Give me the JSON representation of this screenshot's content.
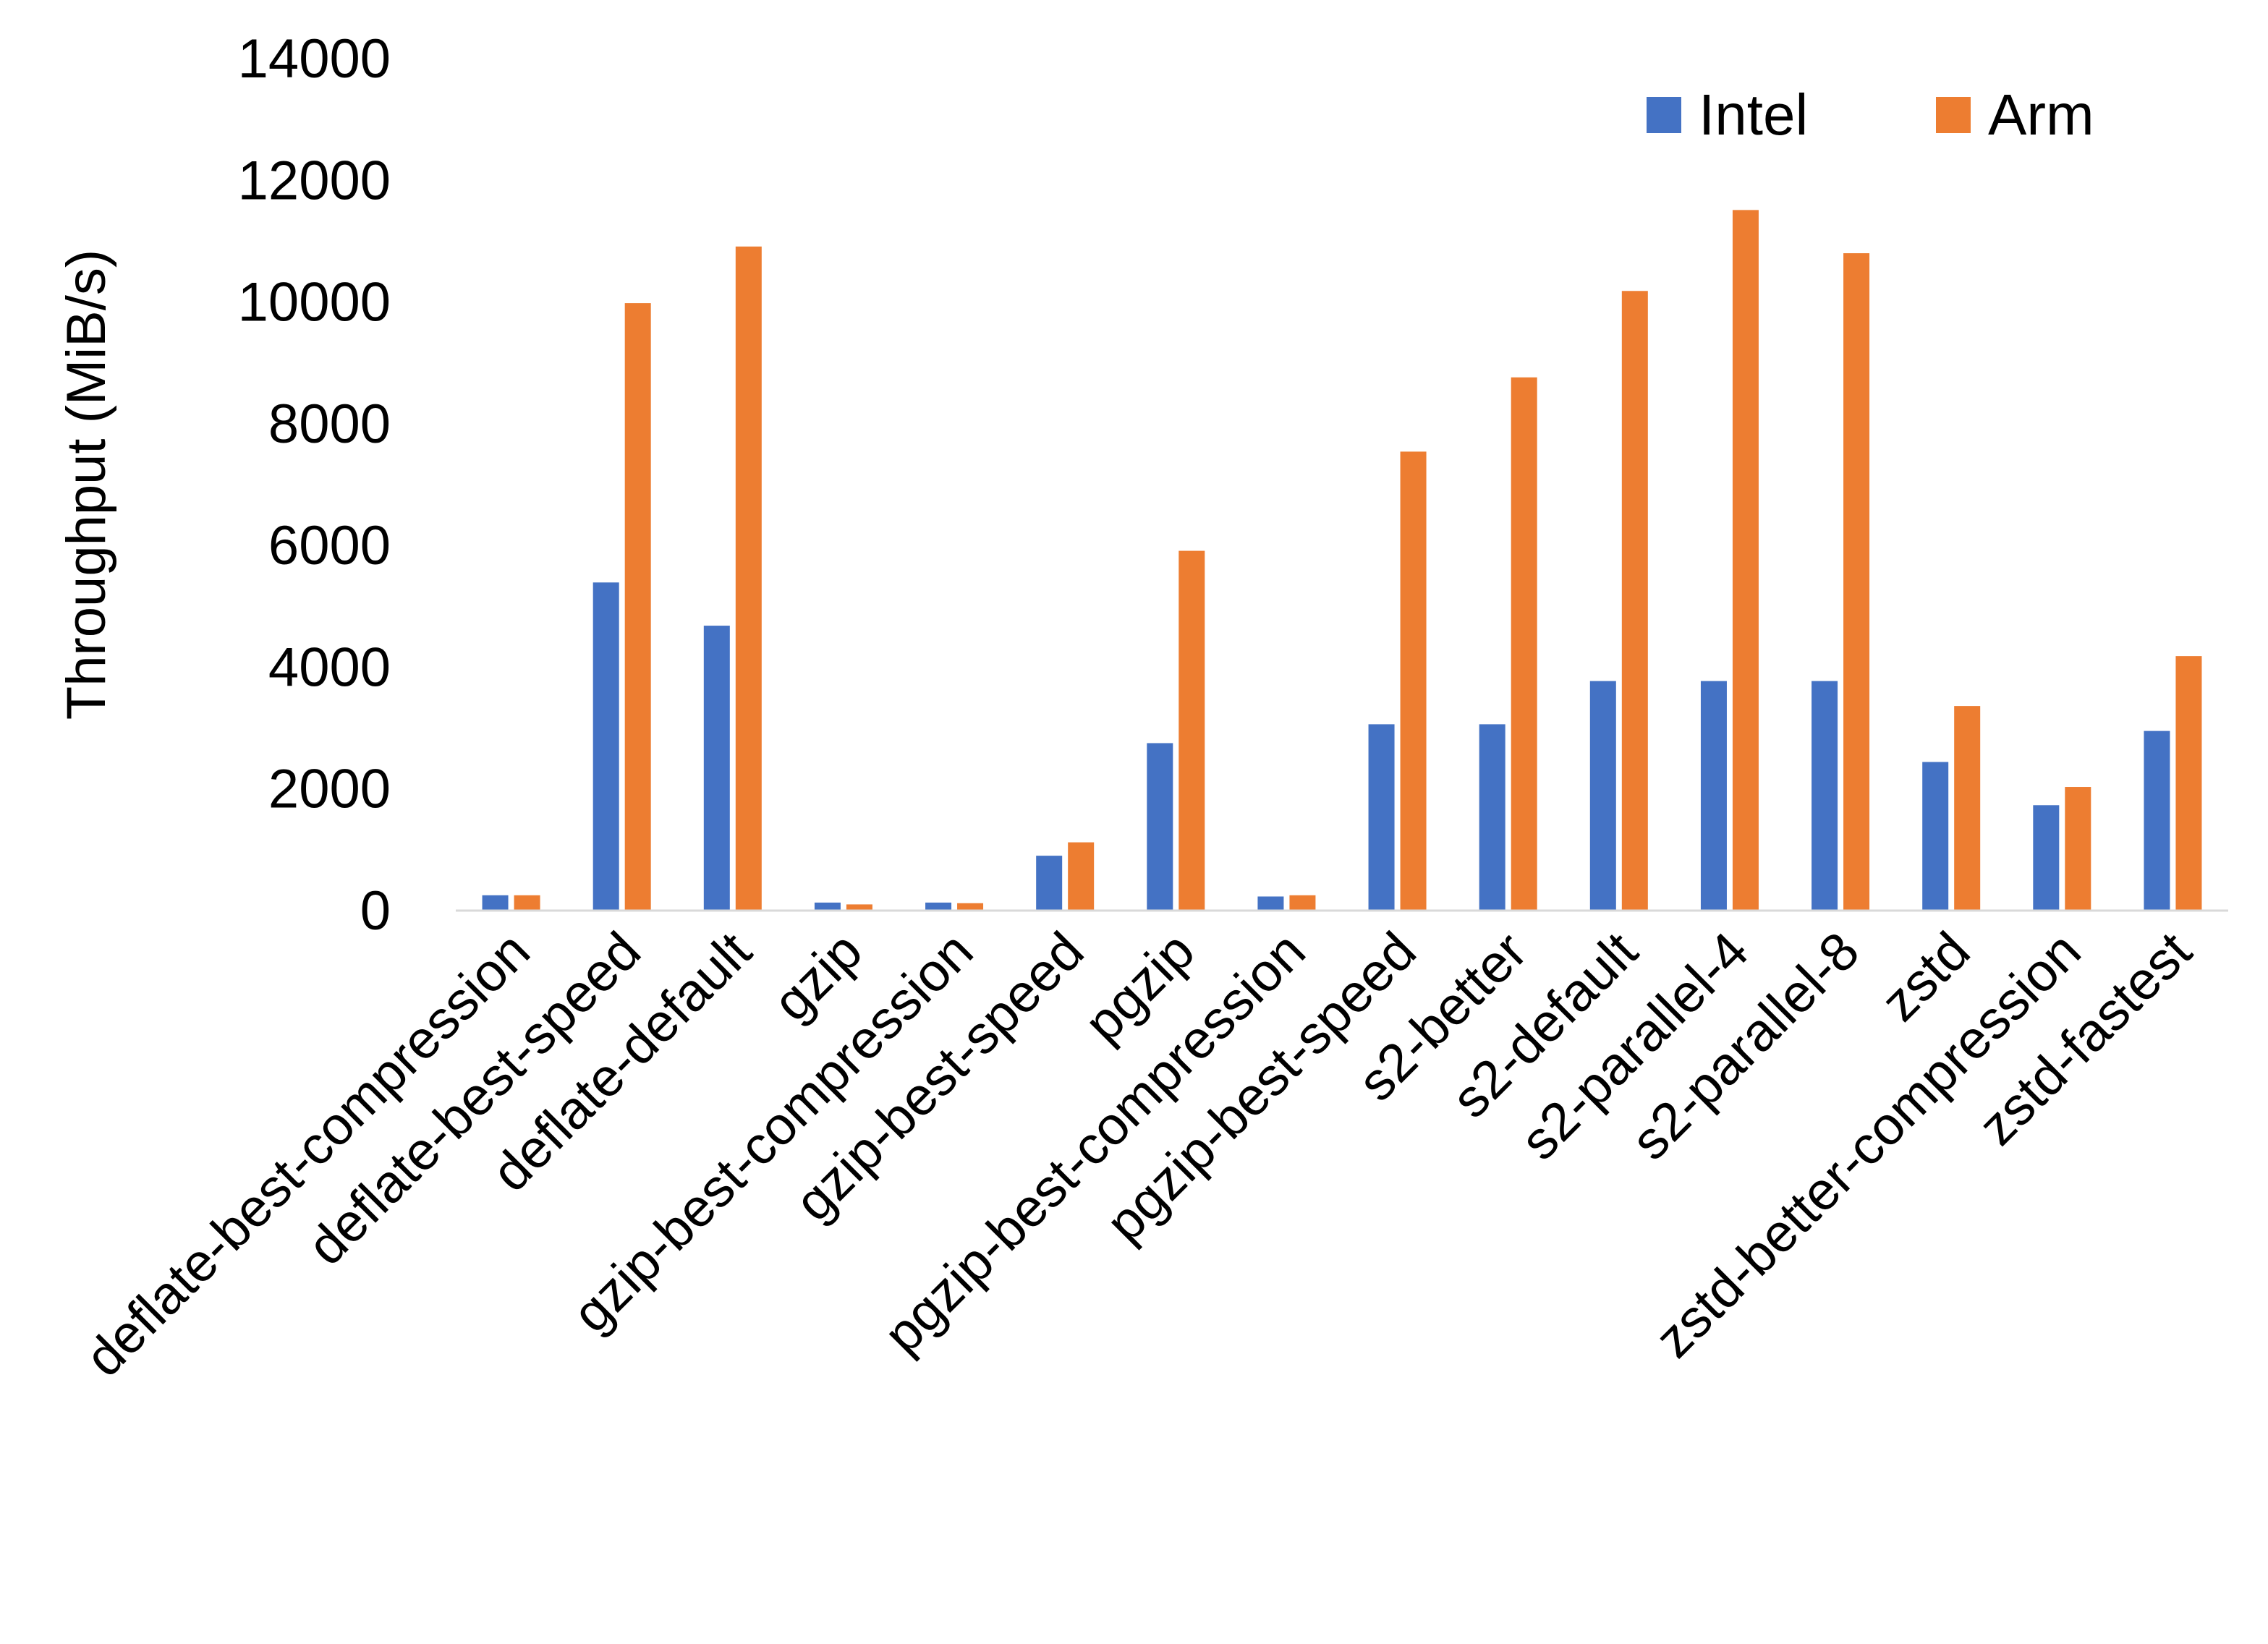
{
  "chart_data": {
    "type": "bar",
    "title": "",
    "xlabel": "",
    "ylabel": "Throughput (MiB/s)",
    "ylim": [
      0,
      14000
    ],
    "yticks": [
      0,
      2000,
      4000,
      6000,
      8000,
      10000,
      12000,
      14000
    ],
    "grid": false,
    "legend_position": "top-right",
    "categories": [
      "deflate-best-compression",
      "deflate-best-speed",
      "deflate-default",
      "gzip",
      "gzip-best-compression",
      "gzip-best-speed",
      "pgzip",
      "pgzip-best-compression",
      "pgzip-best-speed",
      "s2-better",
      "s2-default",
      "s2-parallel-4",
      "s2-parallel-8",
      "zstd",
      "zstd-better-compression",
      "zstd-fastest"
    ],
    "series": [
      {
        "name": "Intel",
        "color": "#4472C4",
        "values": [
          240,
          5380,
          4670,
          120,
          120,
          890,
          2740,
          220,
          3050,
          3050,
          3760,
          3760,
          3760,
          2430,
          1720,
          2940
        ]
      },
      {
        "name": "Arm",
        "color": "#ED7D31",
        "values": [
          240,
          9970,
          10900,
          90,
          110,
          1110,
          5900,
          240,
          7530,
          8750,
          10170,
          11500,
          10790,
          3350,
          2020,
          4170
        ]
      }
    ],
    "axis_line_color": "#D9D9D9"
  }
}
